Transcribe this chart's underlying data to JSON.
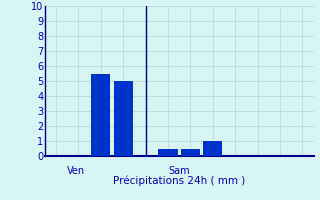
{
  "bar_values": [
    5.5,
    5.0,
    0.5,
    0.5,
    1.0
  ],
  "bar_positions": [
    3,
    4,
    6,
    7,
    8
  ],
  "bar_color": "#0033cc",
  "bar_width": 0.85,
  "ylim": [
    0,
    10
  ],
  "yticks": [
    0,
    1,
    2,
    3,
    4,
    5,
    6,
    7,
    8,
    9,
    10
  ],
  "xlabel": "Précipitations 24h ( mm )",
  "background_color": "#d8f4f4",
  "grid_color": "#b8d4d4",
  "axis_color": "#000088",
  "label_color": "#0000cc",
  "ven_label": "Ven",
  "sam_label": "Sam",
  "ven_x": 1.5,
  "sam_x": 6.0,
  "separator_x": 5.0,
  "xlim": [
    0.5,
    12.5
  ],
  "n_vcols": 12
}
